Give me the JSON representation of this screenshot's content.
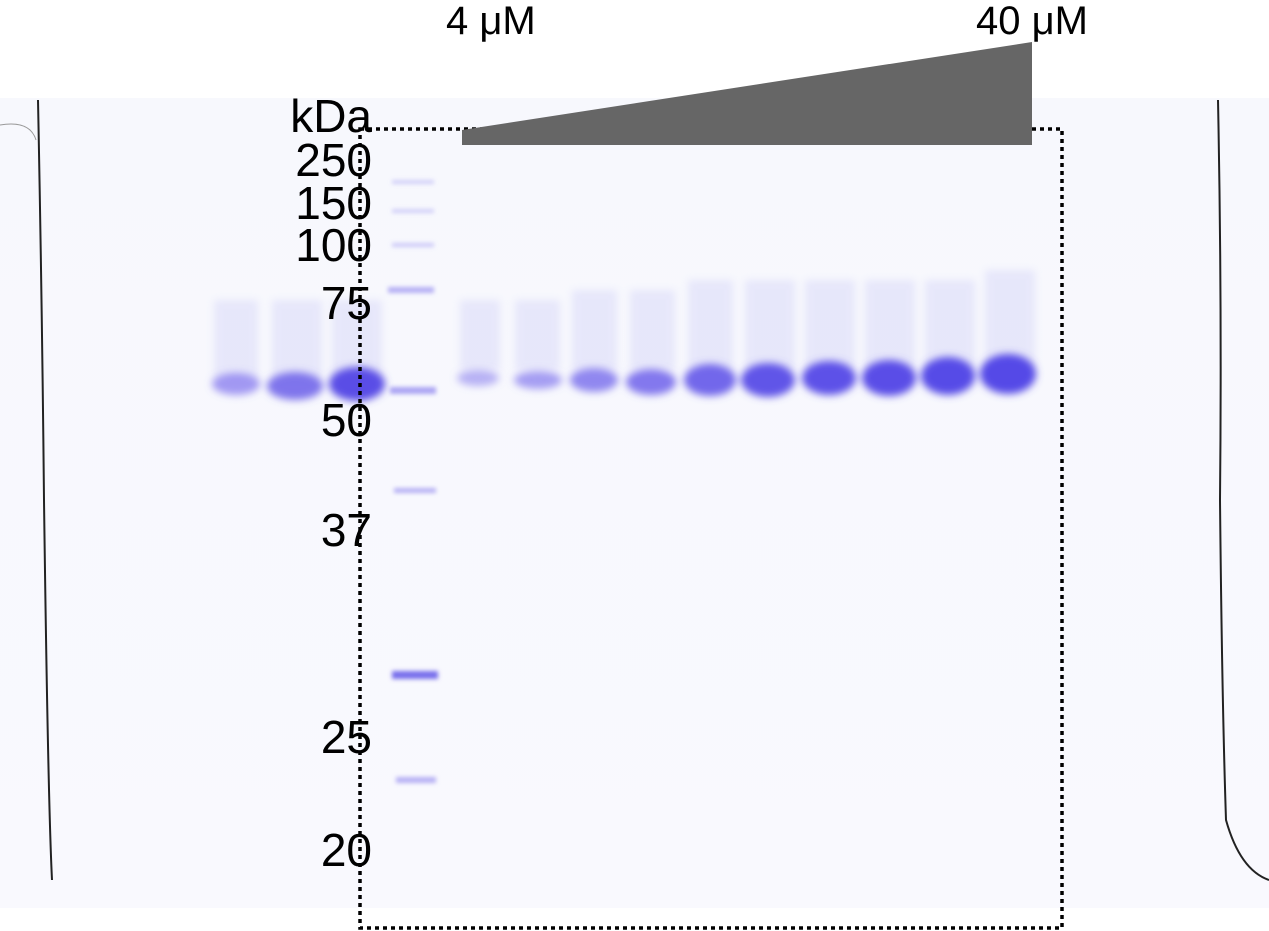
{
  "header": {
    "low_concentration": "4 μM",
    "high_concentration": "40 μM"
  },
  "marker": {
    "unit": "kDa",
    "labels": [
      "250",
      "150",
      "100",
      "75",
      "50",
      "37",
      "25",
      "20"
    ]
  }
}
